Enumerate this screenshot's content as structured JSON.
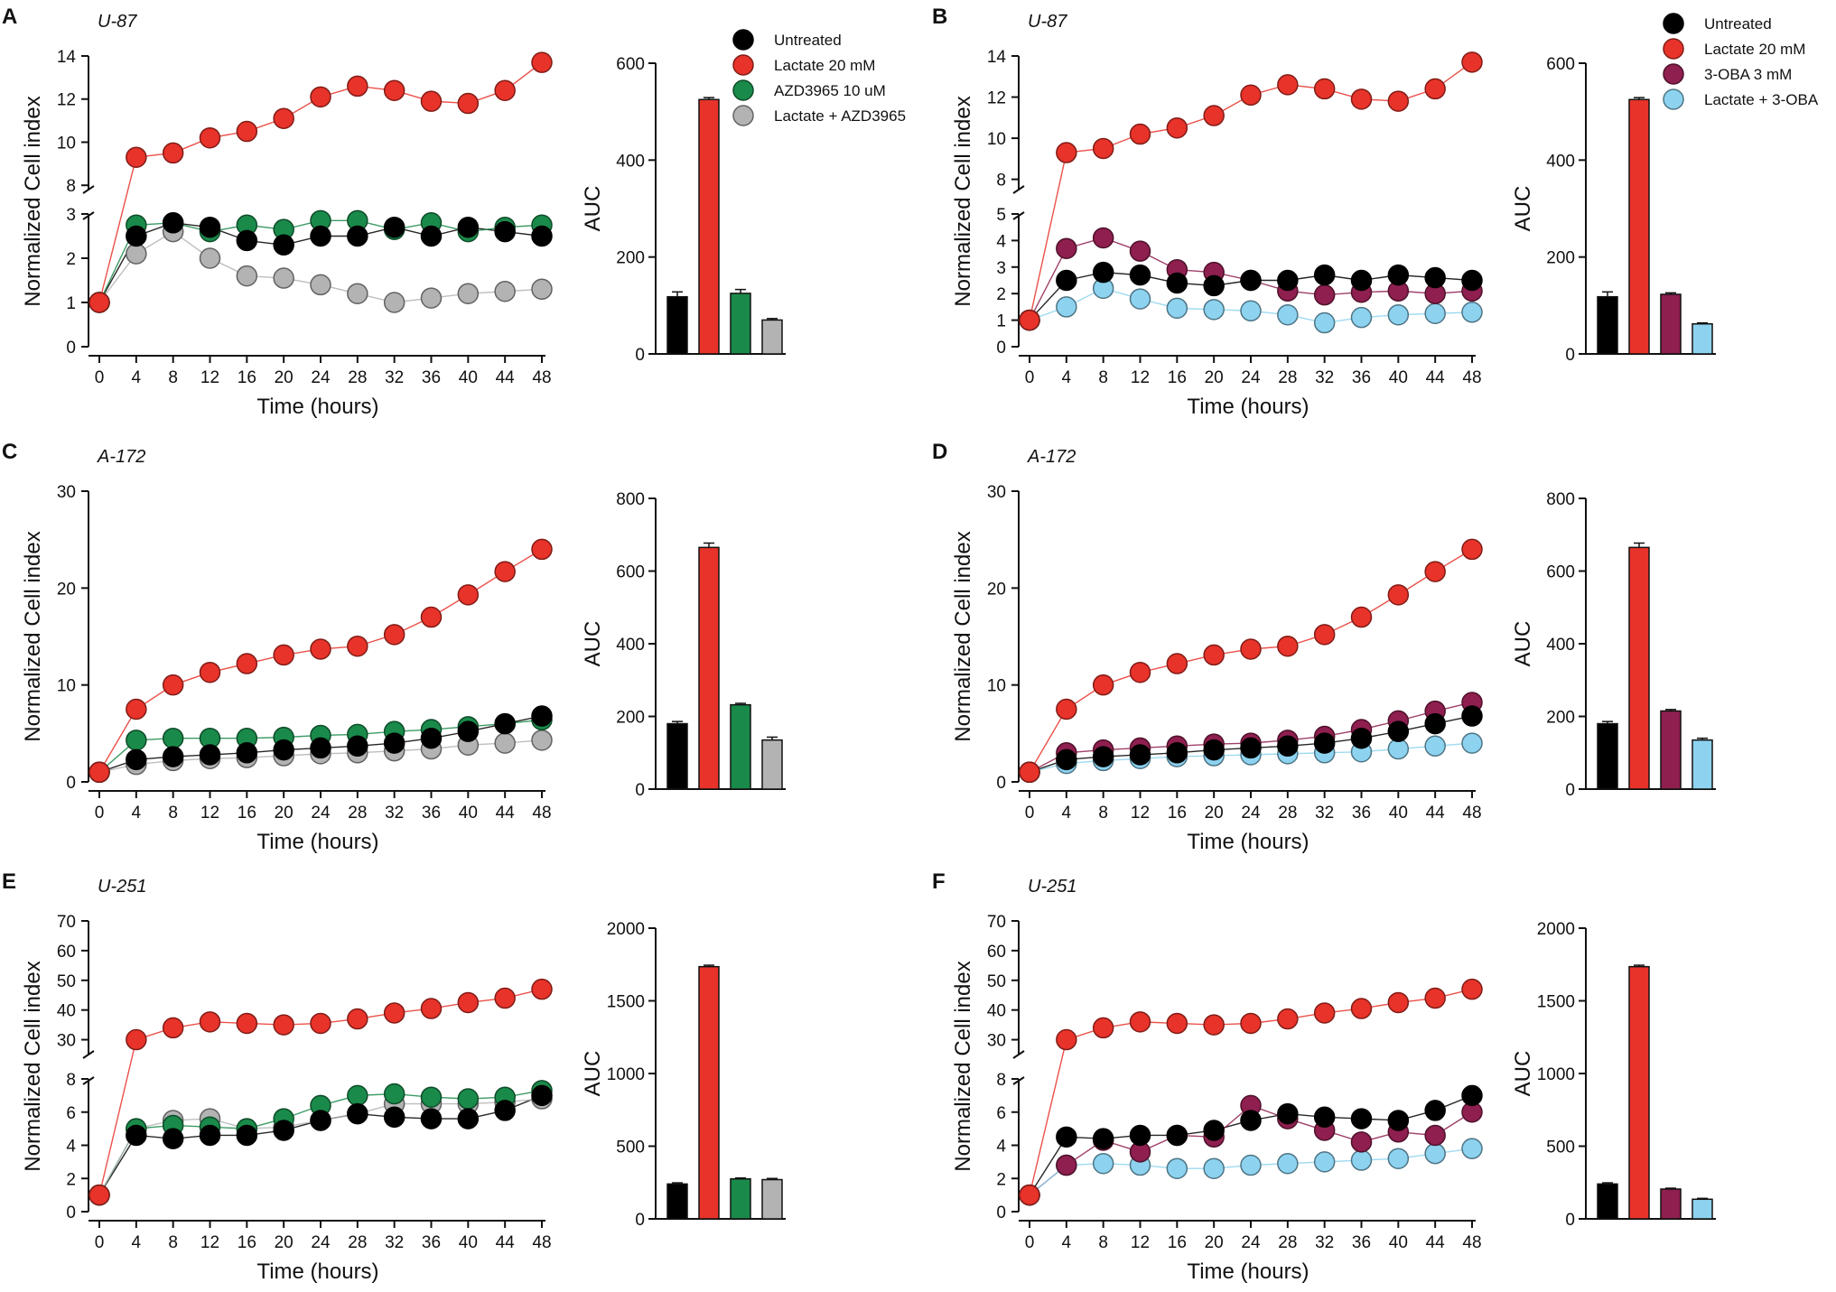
{
  "figure": {
    "times": [
      0,
      4,
      8,
      12,
      16,
      20,
      24,
      28,
      32,
      36,
      40,
      44,
      48
    ],
    "colors": {
      "Untreated": "#000000",
      "Lactate 20 mM": "#e8332a",
      "AZD3965 10 uM": "#1a8a4a",
      "Lactate + AZD3965": "#b3b3b3",
      "3-OBA 3 mM": "#8e1f4f",
      "Lactate + 3-OBA": "#8dd3f0"
    }
  },
  "chart_data": [
    {
      "id": "A",
      "cell_line": "U-87",
      "type": "line",
      "xlabel": "Time (hours)",
      "ylabel": "Normalized Cell index",
      "xlim": [
        0,
        48
      ],
      "xticks": [
        0,
        4,
        8,
        12,
        16,
        20,
        24,
        28,
        32,
        36,
        40,
        44,
        48
      ],
      "broken_axis": true,
      "ylim_lower": [
        0,
        3
      ],
      "yticks_lower": [
        0,
        1,
        2,
        3
      ],
      "ylim_upper": [
        7.8,
        14
      ],
      "yticks_upper": [
        8,
        10,
        12,
        14
      ],
      "legend": [
        "Untreated",
        "Lactate 20 mM",
        "AZD3965 10 uM",
        "Lactate + AZD3965"
      ],
      "series": [
        {
          "name": "Untreated",
          "values": [
            1,
            2.5,
            2.8,
            2.7,
            2.4,
            2.3,
            2.5,
            2.5,
            2.7,
            2.5,
            2.7,
            2.6,
            2.5
          ]
        },
        {
          "name": "Lactate 20 mM",
          "values": [
            1,
            9.3,
            9.5,
            10.2,
            10.5,
            11.1,
            12.1,
            12.6,
            12.4,
            11.9,
            11.8,
            12.4,
            13.7
          ]
        },
        {
          "name": "AZD3965 10 uM",
          "values": [
            1,
            2.75,
            2.8,
            2.6,
            2.75,
            2.65,
            2.85,
            2.85,
            2.65,
            2.8,
            2.6,
            2.7,
            2.75
          ]
        },
        {
          "name": "Lactate + AZD3965",
          "values": [
            1,
            2.1,
            2.6,
            2.0,
            1.6,
            1.55,
            1.4,
            1.2,
            1.0,
            1.1,
            1.2,
            1.25,
            1.3
          ]
        }
      ],
      "auc": {
        "ylabel": "AUC",
        "ylim": [
          0,
          600
        ],
        "yticks": [
          0,
          200,
          400,
          600
        ],
        "categories": [
          "Untreated",
          "Lactate 20 mM",
          "AZD3965 10 uM",
          "Lactate + AZD3965"
        ],
        "values": [
          118,
          525,
          125,
          70
        ],
        "errors": [
          10,
          4,
          8,
          3
        ]
      }
    },
    {
      "id": "B",
      "cell_line": "U-87",
      "type": "line",
      "xlabel": "Time (hours)",
      "ylabel": "Normalized Cell index",
      "xlim": [
        0,
        48
      ],
      "xticks": [
        0,
        4,
        8,
        12,
        16,
        20,
        24,
        28,
        32,
        36,
        40,
        44,
        48
      ],
      "broken_axis": true,
      "ylim_lower": [
        0,
        5
      ],
      "yticks_lower": [
        0,
        1,
        2,
        3,
        4,
        5
      ],
      "ylim_upper": [
        7.5,
        14
      ],
      "yticks_upper": [
        8,
        10,
        12,
        14
      ],
      "legend": [
        "Untreated",
        "Lactate 20 mM",
        "3-OBA 3 mM",
        "Lactate + 3-OBA"
      ],
      "series": [
        {
          "name": "Untreated",
          "values": [
            1,
            2.5,
            2.8,
            2.7,
            2.4,
            2.3,
            2.5,
            2.5,
            2.7,
            2.5,
            2.7,
            2.6,
            2.5
          ]
        },
        {
          "name": "Lactate 20 mM",
          "values": [
            1,
            9.3,
            9.5,
            10.2,
            10.5,
            11.1,
            12.1,
            12.6,
            12.4,
            11.9,
            11.8,
            12.4,
            13.7
          ]
        },
        {
          "name": "3-OBA 3 mM",
          "values": [
            1,
            3.7,
            4.1,
            3.6,
            2.9,
            2.8,
            2.5,
            2.1,
            1.95,
            2.05,
            2.1,
            2.0,
            2.1
          ]
        },
        {
          "name": "Lactate + 3-OBA",
          "values": [
            1,
            1.5,
            2.2,
            1.8,
            1.45,
            1.4,
            1.35,
            1.2,
            0.9,
            1.1,
            1.2,
            1.25,
            1.3
          ]
        }
      ],
      "auc": {
        "ylabel": "AUC",
        "ylim": [
          0,
          600
        ],
        "yticks": [
          0,
          200,
          400,
          600
        ],
        "categories": [
          "Untreated",
          "Lactate 20 mM",
          "3-OBA 3 mM",
          "Lactate + 3-OBA"
        ],
        "values": [
          118,
          525,
          123,
          62
        ],
        "errors": [
          10,
          4,
          3,
          2
        ]
      }
    },
    {
      "id": "C",
      "cell_line": "A-172",
      "type": "line",
      "xlabel": "Time (hours)",
      "ylabel": "Normalized Cell index",
      "xlim": [
        0,
        48
      ],
      "xticks": [
        0,
        4,
        8,
        12,
        16,
        20,
        24,
        28,
        32,
        36,
        40,
        44,
        48
      ],
      "broken_axis": false,
      "ylim": [
        0,
        30
      ],
      "yticks": [
        0,
        10,
        20,
        30
      ],
      "series": [
        {
          "name": "Untreated",
          "values": [
            1,
            2.3,
            2.6,
            2.8,
            3.0,
            3.3,
            3.5,
            3.7,
            4.0,
            4.5,
            5.2,
            6.0,
            6.8
          ]
        },
        {
          "name": "Lactate 20 mM",
          "values": [
            1,
            7.5,
            10.0,
            11.3,
            12.2,
            13.1,
            13.7,
            14.0,
            15.2,
            17.0,
            19.3,
            21.7,
            24.0
          ]
        },
        {
          "name": "AZD3965 10 uM",
          "values": [
            1,
            4.3,
            4.5,
            4.5,
            4.5,
            4.6,
            4.8,
            4.9,
            5.2,
            5.4,
            5.7,
            6.0,
            6.4
          ]
        },
        {
          "name": "Lactate + AZD3965",
          "values": [
            1,
            1.8,
            2.2,
            2.4,
            2.5,
            2.7,
            2.9,
            3.0,
            3.2,
            3.4,
            3.8,
            4.0,
            4.3
          ]
        }
      ],
      "auc": {
        "ylabel": "AUC",
        "ylim": [
          0,
          800
        ],
        "yticks": [
          0,
          200,
          400,
          600,
          800
        ],
        "categories": [
          "Untreated",
          "Lactate 20 mM",
          "AZD3965 10 uM",
          "Lactate + AZD3965"
        ],
        "values": [
          180,
          665,
          232,
          135
        ],
        "errors": [
          6,
          12,
          4,
          8
        ]
      }
    },
    {
      "id": "D",
      "cell_line": "A-172",
      "type": "line",
      "xlabel": "Time (hours)",
      "ylabel": "Normalized Cell index",
      "xlim": [
        0,
        48
      ],
      "xticks": [
        0,
        4,
        8,
        12,
        16,
        20,
        24,
        28,
        32,
        36,
        40,
        44,
        48
      ],
      "broken_axis": false,
      "ylim": [
        0,
        30
      ],
      "yticks": [
        0,
        10,
        20,
        30
      ],
      "series": [
        {
          "name": "Untreated",
          "values": [
            1,
            2.3,
            2.6,
            2.8,
            3.0,
            3.3,
            3.5,
            3.7,
            4.0,
            4.5,
            5.2,
            6.0,
            6.8
          ]
        },
        {
          "name": "Lactate 20 mM",
          "values": [
            1,
            7.5,
            10.0,
            11.3,
            12.2,
            13.1,
            13.7,
            14.0,
            15.2,
            17.0,
            19.3,
            21.7,
            24.0
          ]
        },
        {
          "name": "3-OBA 3 mM",
          "values": [
            1,
            3.0,
            3.3,
            3.5,
            3.7,
            3.9,
            4.0,
            4.3,
            4.7,
            5.4,
            6.3,
            7.3,
            8.2
          ]
        },
        {
          "name": "Lactate + 3-OBA",
          "values": [
            1,
            1.9,
            2.2,
            2.4,
            2.6,
            2.7,
            2.8,
            2.9,
            3.0,
            3.1,
            3.4,
            3.7,
            4.0
          ]
        }
      ],
      "auc": {
        "ylabel": "AUC",
        "ylim": [
          0,
          800
        ],
        "yticks": [
          0,
          200,
          400,
          600,
          800
        ],
        "categories": [
          "Untreated",
          "Lactate 20 mM",
          "3-OBA 3 mM",
          "Lactate + 3-OBA"
        ],
        "values": [
          180,
          665,
          215,
          135
        ],
        "errors": [
          6,
          12,
          4,
          5
        ]
      }
    },
    {
      "id": "E",
      "cell_line": "U-251",
      "type": "line",
      "xlabel": "Time (hours)",
      "ylabel": "Normalized Cell index",
      "xlim": [
        0,
        48
      ],
      "xticks": [
        0,
        4,
        8,
        12,
        16,
        20,
        24,
        28,
        32,
        36,
        40,
        44,
        48
      ],
      "broken_axis": true,
      "ylim_lower": [
        0,
        8
      ],
      "yticks_lower": [
        0,
        2,
        4,
        6,
        8
      ],
      "ylim_upper": [
        25,
        70
      ],
      "yticks_upper": [
        30,
        40,
        50,
        60,
        70
      ],
      "series": [
        {
          "name": "Untreated",
          "values": [
            1,
            4.6,
            4.4,
            4.6,
            4.6,
            4.9,
            5.5,
            5.9,
            5.7,
            5.6,
            5.6,
            6.1,
            7.0
          ]
        },
        {
          "name": "Lactate 20 mM",
          "values": [
            1,
            30.0,
            34.0,
            36.0,
            35.5,
            35.0,
            35.5,
            37.0,
            39.0,
            40.5,
            42.5,
            44.0,
            47.0
          ]
        },
        {
          "name": "AZD3965 10 uM",
          "values": [
            1,
            5.0,
            5.2,
            5.1,
            5.0,
            5.6,
            6.4,
            7.0,
            7.1,
            6.9,
            6.8,
            6.9,
            7.3
          ]
        },
        {
          "name": "Lactate + AZD3965",
          "values": [
            1,
            5.0,
            5.5,
            5.6,
            5.0,
            5.1,
            5.5,
            5.9,
            6.5,
            6.5,
            6.5,
            6.6,
            6.8
          ]
        }
      ],
      "auc": {
        "ylabel": "AUC",
        "ylim": [
          0,
          2000
        ],
        "yticks": [
          0,
          500,
          1000,
          1500,
          2000
        ],
        "categories": [
          "Untreated",
          "Lactate 20 mM",
          "AZD3965 10 uM",
          "Lactate + AZD3965"
        ],
        "values": [
          240,
          1735,
          275,
          270
        ],
        "errors": [
          8,
          10,
          6,
          8
        ]
      }
    },
    {
      "id": "F",
      "cell_line": "U-251",
      "type": "line",
      "xlabel": "Time (hours)",
      "ylabel": "Normalized Cell index",
      "xlim": [
        0,
        48
      ],
      "xticks": [
        0,
        4,
        8,
        12,
        16,
        20,
        24,
        28,
        32,
        36,
        40,
        44,
        48
      ],
      "broken_axis": true,
      "ylim_lower": [
        0,
        8
      ],
      "yticks_lower": [
        0,
        2,
        4,
        6,
        8
      ],
      "ylim_upper": [
        25,
        70
      ],
      "yticks_upper": [
        30,
        40,
        50,
        60,
        70
      ],
      "series": [
        {
          "name": "Untreated",
          "values": [
            1,
            4.5,
            4.4,
            4.6,
            4.6,
            4.9,
            5.5,
            5.9,
            5.7,
            5.6,
            5.5,
            6.1,
            7.0
          ]
        },
        {
          "name": "Lactate 20 mM",
          "values": [
            1,
            30.0,
            34.0,
            36.0,
            35.5,
            35.0,
            35.5,
            37.0,
            39.0,
            40.5,
            42.5,
            44.0,
            47.0
          ]
        },
        {
          "name": "3-OBA 3 mM",
          "values": [
            1,
            2.8,
            4.3,
            3.6,
            4.6,
            4.5,
            6.4,
            5.6,
            4.9,
            4.2,
            4.8,
            4.6,
            6.0
          ]
        },
        {
          "name": "Lactate + 3-OBA",
          "values": [
            1,
            2.8,
            2.9,
            2.8,
            2.6,
            2.6,
            2.8,
            2.9,
            3.0,
            3.1,
            3.2,
            3.5,
            3.8
          ]
        }
      ],
      "auc": {
        "ylabel": "AUC",
        "ylim": [
          0,
          2000
        ],
        "yticks": [
          0,
          500,
          1000,
          1500,
          2000
        ],
        "categories": [
          "Untreated",
          "Lactate 20 mM",
          "3-OBA 3 mM",
          "Lactate + 3-OBA"
        ],
        "values": [
          240,
          1735,
          205,
          135
        ],
        "errors": [
          8,
          10,
          6,
          6
        ]
      }
    }
  ]
}
